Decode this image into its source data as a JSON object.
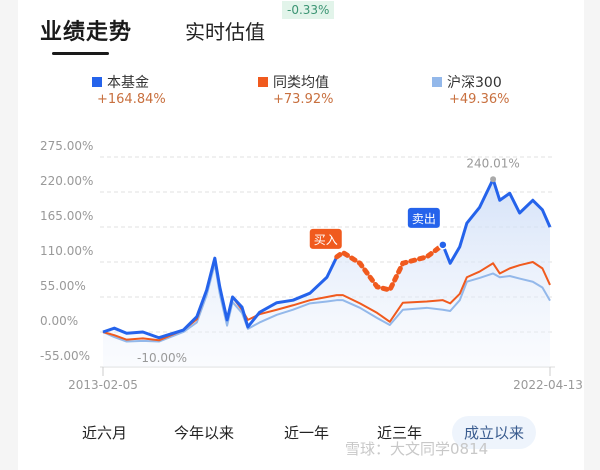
{
  "header": {
    "tabs": [
      {
        "label": "业绩走势",
        "active": true
      },
      {
        "label": "实时估值",
        "active": false
      }
    ],
    "estimate_badge": "-0.33%"
  },
  "legend": [
    {
      "name": "本基金",
      "value": "+164.84%",
      "color": "#2563eb"
    },
    {
      "name": "同类均值",
      "value": "+73.92%",
      "color": "#f05a1e"
    },
    {
      "name": "沪深300",
      "value": "+49.36%",
      "color": "#93b8ea"
    }
  ],
  "chart_data": {
    "type": "line",
    "y_ticks": [
      "275.00%",
      "220.00%",
      "165.00%",
      "110.00%",
      "55.00%",
      "0.00%",
      "-55.00%"
    ],
    "y_tick_values": [
      275,
      220,
      165,
      110,
      55,
      0,
      -55
    ],
    "ylim": [
      -55,
      275
    ],
    "x_labels": [
      "2013-02-05",
      "2022-04-13"
    ],
    "grid": true,
    "x": [
      "2013-02-05",
      "2013-05-01",
      "2013-08-01",
      "2013-12-01",
      "2014-04-01",
      "2014-10-01",
      "2015-01-10",
      "2015-03-25",
      "2015-05-25",
      "2015-07-01",
      "2015-08-25",
      "2015-10-05",
      "2015-12-15",
      "2016-01-28",
      "2016-04-25",
      "2016-09-01",
      "2017-01-01",
      "2017-05-08",
      "2017-09-12",
      "2017-11-25",
      "2018-01-10",
      "2018-05-18",
      "2018-09-24",
      "2018-12-28",
      "2019-04-05",
      "2019-10-01",
      "2020-01-30",
      "2020-03-25",
      "2020-06-05",
      "2020-07-28",
      "2020-11-01",
      "2021-02-10",
      "2021-04-01",
      "2021-06-15",
      "2021-08-28",
      "2021-12-05",
      "2022-02-15",
      "2022-04-13"
    ],
    "series": [
      {
        "name": "本基金",
        "color": "#2563eb",
        "values": [
          0,
          6,
          -2,
          0,
          -9,
          3,
          24,
          66,
          116,
          71,
          19,
          55,
          39,
          8,
          31,
          46,
          50,
          61,
          86,
          118,
          125,
          108,
          71,
          66,
          108,
          118,
          137,
          108,
          134,
          171,
          196,
          240.01,
          207,
          218,
          187,
          207,
          192,
          164.84
        ]
      },
      {
        "name": "同类均值",
        "color": "#f05a1e",
        "values": [
          0,
          -5,
          -12,
          -10,
          -13,
          3,
          20,
          66,
          116,
          71,
          19,
          55,
          35,
          19,
          28,
          35,
          42,
          50,
          55,
          58,
          58,
          45,
          30,
          16,
          46,
          48,
          50,
          45,
          60,
          86,
          95,
          108,
          92,
          100,
          105,
          110,
          100,
          73.92
        ]
      },
      {
        "name": "沪深300",
        "color": "#93b8ea",
        "values": [
          0,
          -8,
          -15,
          -14,
          -15,
          0,
          15,
          58,
          107,
          60,
          10,
          47,
          30,
          5,
          15,
          27,
          35,
          45,
          48,
          50,
          50,
          38,
          22,
          11,
          35,
          38,
          35,
          33,
          50,
          79,
          85,
          92,
          86,
          88,
          84,
          79,
          70,
          49.36
        ]
      }
    ],
    "annotations": {
      "max_label": "240.01%",
      "min_label": "-10.00%",
      "buy_label": "买入",
      "buy_date": "2017-11-25",
      "sell_label": "卖出",
      "sell_date": "2020-01-30"
    }
  },
  "periods": [
    {
      "label": "近六月",
      "active": false
    },
    {
      "label": "今年以来",
      "active": false
    },
    {
      "label": "近一年",
      "active": false
    },
    {
      "label": "近三年",
      "active": false
    },
    {
      "label": "成立以来",
      "active": true
    }
  ],
  "watermark": "雪球：大文同学0814"
}
